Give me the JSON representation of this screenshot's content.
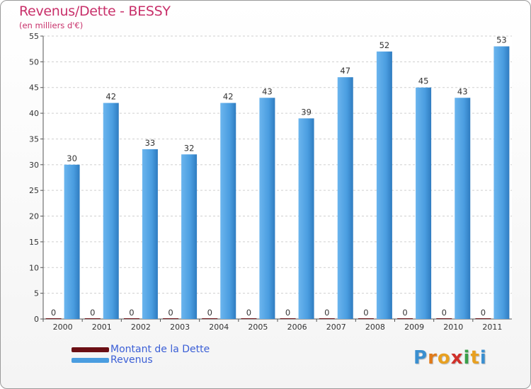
{
  "chart_data": {
    "type": "bar",
    "title": "Revenus/Dette - BESSY",
    "subtitle": "(en milliers d'€)",
    "categories": [
      "2000",
      "2001",
      "2002",
      "2003",
      "2004",
      "2005",
      "2006",
      "2007",
      "2008",
      "2009",
      "2010",
      "2011"
    ],
    "series": [
      {
        "name": "Montant de la Dette",
        "values": [
          0,
          0,
          0,
          0,
          0,
          0,
          0,
          0,
          0,
          0,
          0,
          0
        ],
        "color": "#6b0f14"
      },
      {
        "name": "Revenus",
        "values": [
          30,
          42,
          33,
          32,
          42,
          43,
          39,
          47,
          52,
          45,
          43,
          53
        ],
        "color": "#4a9de0"
      }
    ],
    "ylim": [
      0,
      55
    ],
    "yticks": [
      0,
      5,
      10,
      15,
      20,
      25,
      30,
      35,
      40,
      45,
      50,
      55
    ],
    "grid": true,
    "xlabel": "",
    "ylabel": ""
  },
  "legend": {
    "items": [
      {
        "label": "Montant de la Dette",
        "color": "#6b0f14"
      },
      {
        "label": "Revenus",
        "color": "#4a9de0"
      }
    ]
  },
  "logo": {
    "text": "Proxiti",
    "letter_colors": [
      "#3a8fd0",
      "#e07a1a",
      "#e8a020",
      "#d0302a",
      "#3aa04a",
      "#e8a020",
      "#3a8fd0"
    ]
  }
}
